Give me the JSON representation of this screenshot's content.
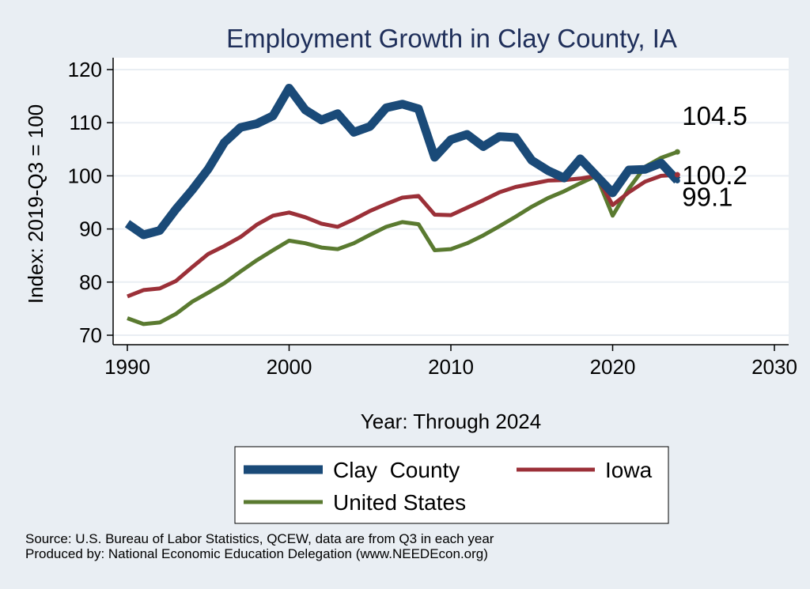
{
  "colors": {
    "background": "#e9eef3",
    "plot_bg": "#ffffff",
    "grid": "#e9eef3",
    "title": "#1f2f5a",
    "clay": "#1a4a78",
    "iowa": "#9b3038",
    "us": "#5a7a30"
  },
  "chart_data": {
    "type": "line",
    "title": "Employment Growth in Clay County, IA",
    "xlabel": "Year: Through 2024",
    "ylabel": "Index: 2019-Q3 = 100",
    "xlim": [
      1990,
      2030
    ],
    "ylim": [
      68,
      122
    ],
    "x_ticks": [
      "1990",
      "2000",
      "2010",
      "2020",
      "2030"
    ],
    "y_ticks": [
      "70",
      "80",
      "90",
      "100",
      "110",
      "120"
    ],
    "x": [
      1990,
      1991,
      1992,
      1993,
      1994,
      1995,
      1996,
      1997,
      1998,
      1999,
      2000,
      2001,
      2002,
      2003,
      2004,
      2005,
      2006,
      2007,
      2008,
      2009,
      2010,
      2011,
      2012,
      2013,
      2014,
      2015,
      2016,
      2017,
      2018,
      2019,
      2020,
      2021,
      2022,
      2023,
      2024
    ],
    "series": [
      {
        "name": "Clay  County",
        "color_key": "clay",
        "width": 11,
        "values": [
          91.0,
          88.9,
          89.7,
          93.7,
          97.3,
          101.3,
          106.3,
          109.1,
          109.8,
          111.3,
          116.5,
          112.4,
          110.5,
          111.7,
          108.2,
          109.3,
          112.8,
          113.5,
          112.6,
          103.5,
          106.8,
          107.8,
          105.5,
          107.4,
          107.2,
          102.9,
          101.0,
          99.6,
          103.2,
          100.0,
          96.8,
          101.1,
          101.2,
          102.4,
          99.1
        ],
        "end_label": "99.1"
      },
      {
        "name": "Iowa",
        "color_key": "iowa",
        "width": 5,
        "values": [
          77.3,
          78.5,
          78.8,
          80.2,
          82.8,
          85.3,
          86.8,
          88.5,
          90.8,
          92.5,
          93.1,
          92.2,
          91.0,
          90.4,
          91.8,
          93.4,
          94.7,
          95.9,
          96.2,
          92.7,
          92.6,
          94.0,
          95.4,
          96.9,
          97.9,
          98.5,
          99.1,
          99.2,
          99.5,
          100.0,
          94.5,
          96.9,
          98.9,
          100.0,
          100.2
        ],
        "end_label": "100.2"
      },
      {
        "name": "United States",
        "color_key": "us",
        "width": 5,
        "values": [
          73.2,
          72.1,
          72.4,
          74.0,
          76.3,
          78.0,
          79.8,
          82.0,
          84.1,
          86.0,
          87.8,
          87.3,
          86.5,
          86.2,
          87.3,
          88.9,
          90.4,
          91.3,
          90.9,
          86.0,
          86.2,
          87.3,
          88.8,
          90.5,
          92.3,
          94.2,
          95.8,
          97.1,
          98.6,
          100.0,
          92.5,
          97.6,
          101.7,
          103.4,
          104.5
        ],
        "end_label": "104.5"
      }
    ],
    "legend": {
      "position": "bottom",
      "entries": [
        "Clay  County",
        "Iowa",
        "United States"
      ]
    }
  },
  "source": {
    "line1": "Source: U.S. Bureau of Labor Statistics, QCEW, data are from Q3 in each year",
    "line2": "Produced by: National Economic Education Delegation (www.NEEDEcon.org)"
  }
}
